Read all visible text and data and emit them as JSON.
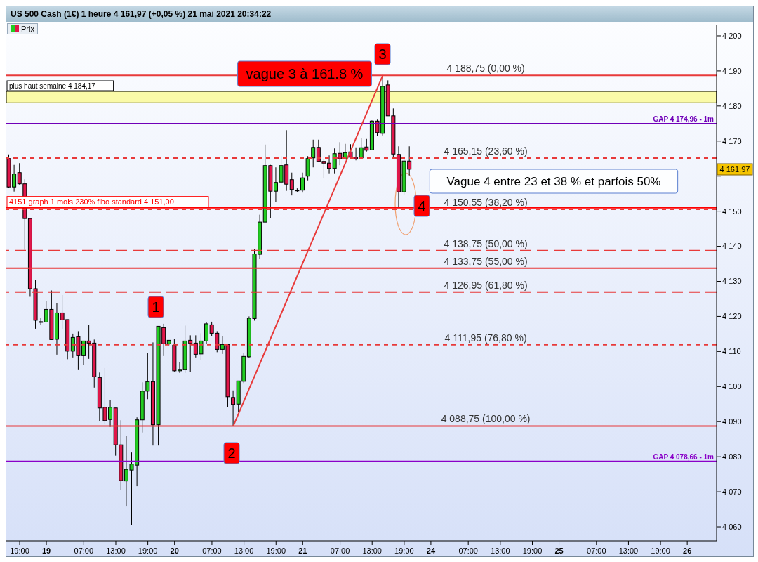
{
  "chart_data": {
    "type": "candlestick",
    "title": "US 500 Cash (1€) 1 heure 4 161,97 (+0,05 %) 21 mai 2021 20:34:22",
    "legend": "top left",
    "categories": [
      null,
      null,
      "19:00",
      null,
      null,
      null,
      null,
      "19",
      null,
      null,
      null,
      null,
      null,
      null,
      "07:00",
      null,
      null,
      null,
      null,
      null,
      "13:00",
      null,
      null,
      null,
      null,
      null,
      "19:00",
      null,
      null,
      null,
      null,
      "20",
      null,
      null,
      null,
      null,
      null,
      null,
      "07:00",
      null,
      null,
      null,
      null,
      null,
      "13:00",
      null,
      null,
      null,
      null,
      null,
      "19:00",
      null,
      null,
      null,
      null,
      "21",
      null,
      null,
      null,
      null,
      null,
      null,
      "07:00",
      null,
      null,
      null,
      null,
      null,
      "13:00",
      null,
      null,
      null,
      null,
      null,
      "19:00",
      null,
      null,
      null,
      null,
      "24",
      null,
      null,
      null,
      null,
      null,
      null,
      "07:00",
      null,
      null,
      null,
      null,
      null,
      "13:00",
      null,
      null,
      null,
      null,
      null,
      "19:00",
      null,
      null,
      null,
      null,
      "25",
      null,
      null,
      null,
      null,
      null,
      null,
      "07:00",
      null,
      null,
      null,
      null,
      null,
      "13:00",
      null,
      null,
      null,
      null,
      null,
      "19:00",
      null,
      null,
      null,
      null,
      "26",
      null,
      null,
      null,
      null,
      null
    ],
    "series": [
      {
        "name": "Prix",
        "ohlc": [
          [
            4165.0,
            4166.2,
            4156.7,
            4156.9
          ],
          [
            4156.9,
            4163.2,
            4155.6,
            4160.6
          ],
          [
            4161.0,
            4163.7,
            4157.6,
            4157.8
          ],
          [
            4157.8,
            4159.1,
            4139.0,
            4147.9
          ],
          [
            4147.9,
            4147.9,
            4125.6,
            4127.9
          ],
          [
            4127.9,
            4130.5,
            4116.5,
            4118.9
          ],
          [
            4118.5,
            4119.6,
            4117.5,
            4118.5
          ],
          [
            4118.4,
            4124.4,
            4118.4,
            4122.0
          ],
          [
            4122.0,
            4127.4,
            4113.4,
            4113.4
          ],
          [
            4113.5,
            4123.7,
            4109.1,
            4121.0
          ],
          [
            4121.0,
            4126.1,
            4116.5,
            4119.0
          ],
          [
            4119.1,
            4119.1,
            4107.8,
            4110.1
          ],
          [
            4110.1,
            4115.1,
            4108.3,
            4114.0
          ],
          [
            4114.2,
            4115.8,
            4104.9,
            4108.8
          ],
          [
            4108.8,
            4113.0,
            4106.1,
            4113.0
          ],
          [
            4113.0,
            4117.5,
            4107.9,
            4112.4
          ],
          [
            4112.4,
            4113.4,
            4099.7,
            4102.8
          ],
          [
            4102.6,
            4104.0,
            4090.2,
            4093.9
          ],
          [
            4094.1,
            4105.3,
            4089.3,
            4090.3
          ],
          [
            4090.6,
            4096.2,
            4088.5,
            4094.1
          ],
          [
            4093.9,
            4093.9,
            4080.3,
            4083.4
          ],
          [
            4083.4,
            4090.4,
            4070.5,
            4073.2
          ],
          [
            4073.1,
            4085.9,
            4066.0,
            4076.4
          ],
          [
            4076.2,
            4081.2,
            4060.6,
            4077.9
          ],
          [
            4077.6,
            4091.2,
            4071.6,
            4090.5
          ],
          [
            4090.5,
            4101.2,
            4086.9,
            4098.7
          ],
          [
            4098.7,
            4109.6,
            4096.4,
            4101.4
          ],
          [
            4101.4,
            4112.6,
            4083.2,
            4089.1
          ],
          [
            4089.1,
            4117.2,
            4083.2,
            4117.2
          ],
          [
            4116.8,
            4117.9,
            4108.7,
            4112.2
          ],
          [
            4112.2,
            4113.2,
            4111.8,
            4113.2
          ],
          [
            4111.8,
            4113.6,
            4104.3,
            4104.5
          ],
          [
            4104.5,
            4106.9,
            4103.9,
            4104.9
          ],
          [
            4104.9,
            4117.4,
            4103.9,
            4113.0
          ],
          [
            4113.2,
            4114.6,
            4104.1,
            4112.3
          ],
          [
            4112.4,
            4114.6,
            4108.3,
            4109.2
          ],
          [
            4109.3,
            4115.2,
            4107.6,
            4113.0
          ],
          [
            4113.0,
            4118.3,
            4112.1,
            4117.9
          ],
          [
            4117.6,
            4118.5,
            4114.3,
            4115.2
          ],
          [
            4115.2,
            4115.8,
            4109.8,
            4110.6
          ],
          [
            4110.6,
            4114.4,
            4109.3,
            4112.0
          ],
          [
            4112.0,
            4112.0,
            4094.2,
            4097.1
          ],
          [
            4096.9,
            4098.9,
            4088.75,
            4094.9
          ],
          [
            4095.0,
            4101.6,
            4092.8,
            4101.6
          ],
          [
            4101.5,
            4109.6,
            4101.0,
            4108.6
          ],
          [
            4108.5,
            4120.0,
            4108.1,
            4119.5
          ],
          [
            4119.4,
            4139.1,
            4118.8,
            4137.8
          ],
          [
            4137.7,
            4149.0,
            4136.4,
            4146.9
          ],
          [
            4146.9,
            4169.0,
            4146.9,
            4163.0
          ],
          [
            4163.0,
            4163.2,
            4148.1,
            4155.7
          ],
          [
            4155.7,
            4162.5,
            4152.7,
            4158.2
          ],
          [
            4158.3,
            4165.7,
            4157.8,
            4163.0
          ],
          [
            4163.2,
            4173.1,
            4155.8,
            4157.7
          ],
          [
            4159.0,
            4161.0,
            4154.5,
            4156.2
          ],
          [
            4156.0,
            4156.5,
            4155.5,
            4156.0
          ],
          [
            4156.0,
            4161.0,
            4155.3,
            4159.5
          ],
          [
            4160.0,
            4165.7,
            4158.8,
            4165.0
          ],
          [
            4165.2,
            4170.4,
            4162.5,
            4168.2
          ],
          [
            4168.2,
            4170.4,
            4164.2,
            4164.2
          ],
          [
            4164.2,
            4164.9,
            4159.5,
            4163.7
          ],
          [
            4163.7,
            4165.9,
            4160.8,
            4162.2
          ],
          [
            4162.2,
            4167.9,
            4160.8,
            4166.4
          ],
          [
            4166.5,
            4169.7,
            4163.1,
            4164.9
          ],
          [
            4164.9,
            4169.2,
            4164.7,
            4166.7
          ],
          [
            4166.9,
            4169.1,
            4165.2,
            4165.4
          ],
          [
            4165.4,
            4168.2,
            4164.5,
            4164.9
          ],
          [
            4165.2,
            4170.8,
            4164.9,
            4168.1
          ],
          [
            4168.3,
            4170.6,
            4167.0,
            4167.4
          ],
          [
            4167.5,
            4175.9,
            4167.4,
            4175.7
          ],
          [
            4175.7,
            4176.1,
            4171.4,
            4172.4
          ],
          [
            4172.2,
            4188.75,
            4171.6,
            4185.6
          ],
          [
            4186.0,
            4187.3,
            4177.2,
            4177.2
          ],
          [
            4177.2,
            4179.3,
            4165.2,
            4166.3
          ],
          [
            4166.2,
            4168.5,
            4151.1,
            4155.5
          ],
          [
            4155.5,
            4165.2,
            4154.8,
            4164.3
          ],
          [
            4164.3,
            4168.5,
            4160.2,
            4161.97
          ],
          null,
          null,
          null,
          null,
          null,
          null,
          null,
          null,
          null,
          null,
          null,
          null,
          null,
          null,
          null,
          null,
          null,
          null,
          null,
          null,
          null,
          null,
          null,
          null,
          null,
          null,
          null,
          null,
          null,
          null,
          null,
          null,
          null,
          null,
          null,
          null,
          null,
          null,
          null,
          null,
          null,
          null,
          null,
          null,
          null,
          null,
          null,
          null,
          null,
          null,
          null,
          null,
          null,
          null,
          null,
          null,
          null
        ],
        "colors": [
          "#e0164a",
          "#22cc22",
          "#e0164a",
          "#e0164a",
          "#e0164a",
          "#e0164a",
          "#e0164a",
          "#22cc22",
          "#e0164a",
          "#22cc22",
          "#e0164a",
          "#e0164a",
          "#22cc22",
          "#e0164a",
          "#22cc22",
          "#e0164a",
          "#e0164a",
          "#e0164a",
          "#e0164a",
          "#22cc22",
          "#e0164a",
          "#e0164a",
          "#22cc22",
          "#22cc22",
          "#22cc22",
          "#22cc22",
          "#22cc22",
          "#e0164a",
          "#22cc22",
          "#e0164a",
          "#22cc22",
          "#e0164a",
          "#22cc22",
          "#22cc22",
          "#e0164a",
          "#e0164a",
          "#22cc22",
          "#22cc22",
          "#e0164a",
          "#e0164a",
          "#22cc22",
          "#e0164a",
          "#e0164a",
          "#22cc22",
          "#22cc22",
          "#22cc22",
          "#22cc22",
          "#22cc22",
          "#22cc22",
          "#e0164a",
          "#22cc22",
          "#22cc22",
          "#e0164a",
          "#e0164a",
          "#e0164a",
          "#22cc22",
          "#22cc22",
          "#22cc22",
          "#e0164a",
          "#e0164a",
          "#e0164a",
          "#22cc22",
          "#e0164a",
          "#22cc22",
          "#e0164a",
          "#e0164a",
          "#22cc22",
          "#e0164a",
          "#22cc22",
          "#e0164a",
          "#22cc22",
          "#e0164a",
          "#e0164a",
          "#e0164a",
          "#22cc22",
          "#e0164a",
          null,
          null,
          null,
          null,
          null,
          null,
          null,
          null,
          null,
          null,
          null,
          null,
          null,
          null,
          null,
          null,
          null,
          null,
          null,
          null,
          null,
          null,
          null,
          null,
          null,
          null,
          null,
          null,
          null,
          null,
          null,
          null,
          null,
          null,
          null,
          null,
          null,
          null,
          null,
          null,
          null,
          null,
          null,
          null,
          null,
          null,
          null,
          null,
          null,
          null,
          null,
          null,
          null,
          null,
          null,
          null,
          null
        ]
      },
      {
        "type": "line",
        "color": "#e83a3a",
        "values": [
          null,
          null,
          null,
          null,
          null,
          null,
          null,
          null,
          null,
          null,
          null,
          null,
          null,
          null,
          null,
          null,
          null,
          null,
          null,
          null,
          null,
          null,
          null,
          null,
          null,
          null,
          null,
          null,
          null,
          null,
          null,
          null,
          null,
          null,
          null,
          null,
          null,
          null,
          null,
          null,
          null,
          null,
          4088.75,
          null,
          null,
          null,
          null,
          null,
          null,
          null,
          null,
          null,
          null,
          null,
          null,
          null,
          null,
          null,
          null,
          null,
          null,
          null,
          null,
          null,
          null,
          null,
          null,
          null,
          null,
          null,
          4188.75,
          null,
          null,
          null,
          null,
          null,
          null,
          null,
          null,
          null,
          null,
          null,
          null,
          null,
          null,
          null,
          null,
          null,
          null,
          null,
          null,
          null,
          null,
          null,
          null,
          null,
          null,
          null,
          null,
          null,
          null,
          null,
          null,
          null,
          null,
          null,
          null,
          null,
          null,
          null,
          null,
          null,
          null,
          null,
          null,
          null,
          null,
          null,
          null,
          null,
          null,
          null,
          null,
          null,
          null,
          null,
          null,
          null,
          null,
          null,
          null,
          null,
          null
        ]
      }
    ],
    "ylim": [
      4056,
      4203
    ],
    "yticks": [
      {
        "value": 4060,
        "label": "4 060"
      },
      {
        "value": 4070,
        "label": "4 070"
      },
      {
        "value": 4080,
        "label": "4 080"
      },
      {
        "value": 4090,
        "label": "4 090"
      },
      {
        "value": 4100,
        "label": "4 100"
      },
      {
        "value": 4110,
        "label": "4 110"
      },
      {
        "value": 4120,
        "label": "4 120"
      },
      {
        "value": 4130,
        "label": "4 130"
      },
      {
        "value": 4140,
        "label": "4 140"
      },
      {
        "value": 4150,
        "label": "4 150"
      },
      {
        "value": 4160,
        "label": null
      },
      {
        "value": 4170,
        "label": "4 170"
      },
      {
        "value": 4180,
        "label": "4 180"
      },
      {
        "value": 4190,
        "label": "4 190"
      },
      {
        "value": 4200,
        "label": "4 200"
      }
    ],
    "ref_lines": [
      {
        "axis": "y",
        "value": 4188.75,
        "label": "4 188,75 (0,00 %)",
        "color": "#e83a3a",
        "line_style": "solid"
      },
      {
        "axis": "y",
        "value": 4165.15,
        "label": "4 165,15 (23,60 %)",
        "color": "#e83a3a",
        "line_style": "dotted"
      },
      {
        "axis": "y",
        "value": 4150.55,
        "label": "4 150,55 (38,20 %)",
        "color": "#e83a3a",
        "line_style": "dotted"
      },
      {
        "axis": "y",
        "value": 4138.75,
        "label": "4 138,75 (50,00 %)",
        "color": "#e83a3a",
        "line_style": "dashed"
      },
      {
        "axis": "y",
        "value": 4133.75,
        "label": "4 133,75 (55,00 %)",
        "color": "#e83a3a",
        "line_style": "solid"
      },
      {
        "axis": "y",
        "value": 4126.95,
        "label": "4 126,95 (61,80 %)",
        "color": "#e83a3a",
        "line_style": "dashed"
      },
      {
        "axis": "y",
        "value": 4111.95,
        "label": "4 111,95 (76,80 %)",
        "color": "#e83a3a",
        "line_style": "dotted"
      },
      {
        "axis": "y",
        "value": 4088.75,
        "label": "4 088,75 (100,00 %)",
        "color": "#e83a3a",
        "line_style": "solid"
      },
      {
        "axis": "y",
        "value": 4151,
        "label": "4151 graph 1 mois 230% fibo standard 4 151,00",
        "color": "#ff0000",
        "line_style": "solid"
      },
      {
        "axis": "y",
        "value": 4174.96,
        "label": "GAP 4 174,96 - 1m",
        "color": "#7000b8",
        "line_style": "solid"
      },
      {
        "axis": "y",
        "value": 4078.66,
        "label": "GAP 4 078,66 - 1m",
        "color": "#8a00c8",
        "line_style": "solid"
      }
    ],
    "bands": [
      {
        "axis": "y",
        "from": 4180.9,
        "to": 4184.17,
        "label": "plus haut semaine 4 184,17",
        "color": "#fafaa8"
      }
    ],
    "annotations": [
      "1",
      "2",
      "3",
      "4",
      "vague 3 à 161.8 %",
      "Vague 4 entre 23 et 38 % et parfois 50%",
      "4 161,97"
    ]
  }
}
